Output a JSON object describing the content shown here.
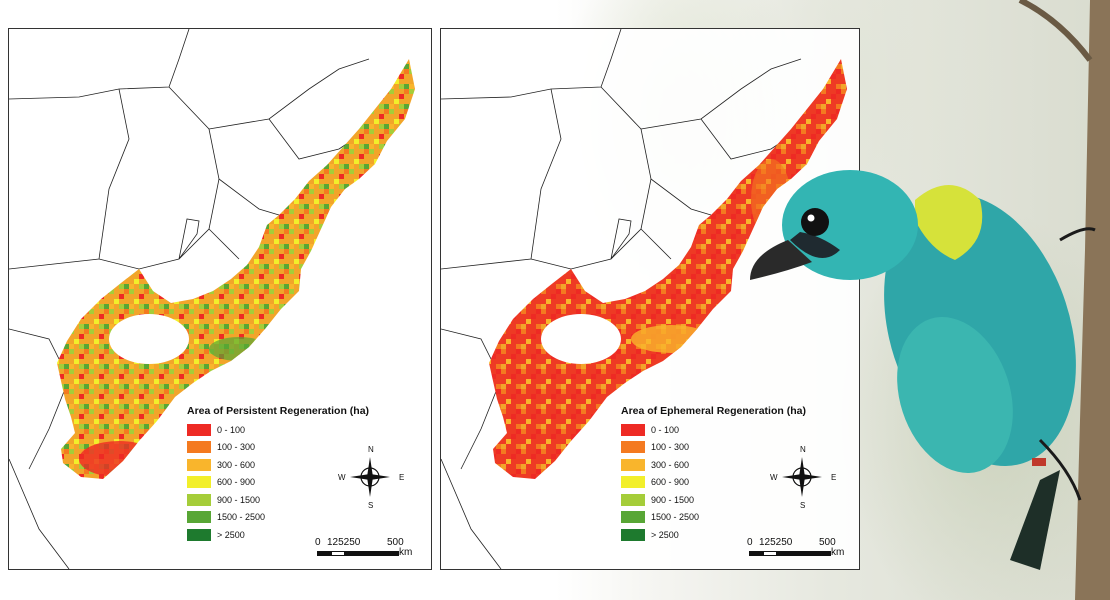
{
  "maps": [
    {
      "legend_title": "Area of Persistent Regeneration (ha)",
      "classes": [
        "0 - 100",
        "100 - 300",
        "300 - 600",
        "600 - 900",
        "900 - 1500",
        "1500 - 2500",
        "> 2500"
      ]
    },
    {
      "legend_title": "Area of Ephemeral Regeneration (ha)",
      "classes": [
        "0 - 100",
        "100 - 300",
        "300 - 600",
        "600 - 900",
        "900 - 1500",
        "1500 - 2500",
        "> 2500"
      ]
    }
  ],
  "class_colors": [
    "#ee2a24",
    "#f47a20",
    "#f9b52c",
    "#f2ef2a",
    "#a5cd39",
    "#58a635",
    "#1e7a2e"
  ],
  "compass": {
    "n": "N",
    "s": "S",
    "e": "E",
    "w": "W"
  },
  "scale": {
    "ticks": [
      "0",
      "125250",
      "500"
    ],
    "unit": "km"
  }
}
